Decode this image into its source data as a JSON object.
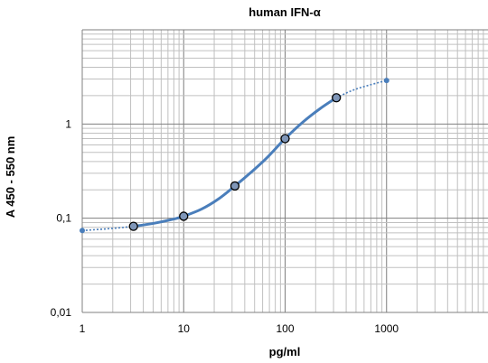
{
  "chart_data": {
    "type": "scatter",
    "title": "human IFN-α",
    "xlabel": "pg/ml",
    "ylabel": "A 450 - 550 nm",
    "x_scale": "log",
    "y_scale": "log",
    "xlim": [
      1,
      10000
    ],
    "ylim": [
      0.01,
      10
    ],
    "x_tick_labels": [
      "1",
      "10",
      "100",
      "1000"
    ],
    "y_tick_labels": [
      "0,01",
      "0,1",
      "1"
    ],
    "grid": true,
    "legend": "none",
    "series": [
      {
        "role": "standard-points",
        "marker": "circle",
        "x": [
          3.2,
          10,
          32,
          100,
          320
        ],
        "y": [
          0.082,
          0.105,
          0.22,
          0.7,
          1.9
        ]
      },
      {
        "role": "extrapolated-points",
        "marker": "small-dot",
        "x": [
          1,
          1000
        ],
        "y": [
          0.074,
          2.9
        ]
      }
    ],
    "fit_curve": {
      "style": "solid",
      "x": [
        3.2,
        5,
        8,
        10,
        15,
        22,
        32,
        45,
        65,
        100,
        150,
        220,
        320
      ],
      "y": [
        0.082,
        0.088,
        0.098,
        0.105,
        0.125,
        0.16,
        0.22,
        0.3,
        0.43,
        0.7,
        1.05,
        1.45,
        1.9
      ]
    },
    "extrapolation": {
      "style": "dotted",
      "low": {
        "x": [
          1,
          2,
          3.2
        ],
        "y": [
          0.074,
          0.078,
          0.082
        ]
      },
      "high": {
        "x": [
          320,
          500,
          1000
        ],
        "y": [
          1.9,
          2.35,
          2.9
        ]
      }
    },
    "colors": {
      "line": "#4a7ebb",
      "marker_fill": "#7f96b8",
      "marker_stroke": "#000000",
      "minor_grid": "#c0c0c0",
      "major_grid": "#7f7f7f",
      "frame": "#808080"
    }
  }
}
